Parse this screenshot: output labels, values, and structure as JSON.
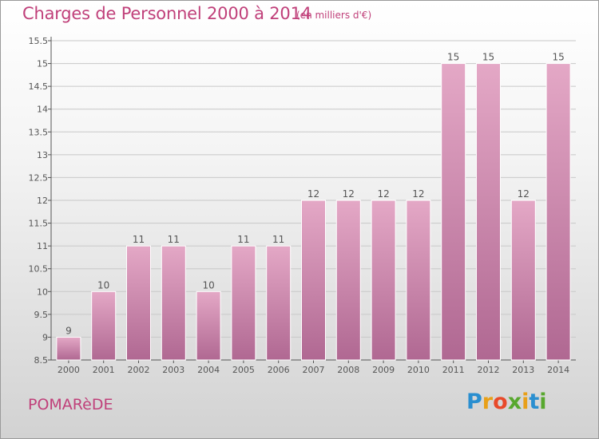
{
  "header": {
    "title": "Charges de Personnel 2000 à 2014",
    "subtitle": "(en milliers d'€)"
  },
  "footer": {
    "commune": "POMARèDE",
    "logo_text": "Proxiti",
    "logo_colors": [
      "#2a8fd0",
      "#e8a018",
      "#e84a2a",
      "#58a82e",
      "#e8a018",
      "#2a8fd0",
      "#58a82e"
    ]
  },
  "colors": {
    "accent": "#c0407a",
    "bar_top": "#e4a8c6",
    "bar_bottom": "#b06892",
    "grid": "#c8c8c8"
  },
  "chart_data": {
    "type": "bar",
    "title": "Charges de Personnel 2000 à 2014",
    "subtitle": "(en milliers d'€)",
    "categories": [
      "2000",
      "2001",
      "2002",
      "2003",
      "2004",
      "2005",
      "2006",
      "2007",
      "2008",
      "2009",
      "2010",
      "2011",
      "2012",
      "2013",
      "2014"
    ],
    "values": [
      9,
      10,
      11,
      11,
      10,
      11,
      11,
      12,
      12,
      12,
      12,
      15,
      15,
      12,
      15
    ],
    "ylim": [
      8.5,
      15.5
    ],
    "yticks": [
      "8.5",
      "9",
      "9.5",
      "10",
      "10.5",
      "11",
      "11.5",
      "12",
      "12.5",
      "13",
      "13.5",
      "14",
      "14.5",
      "15",
      "15.5"
    ],
    "grid": true,
    "legend": "none"
  }
}
